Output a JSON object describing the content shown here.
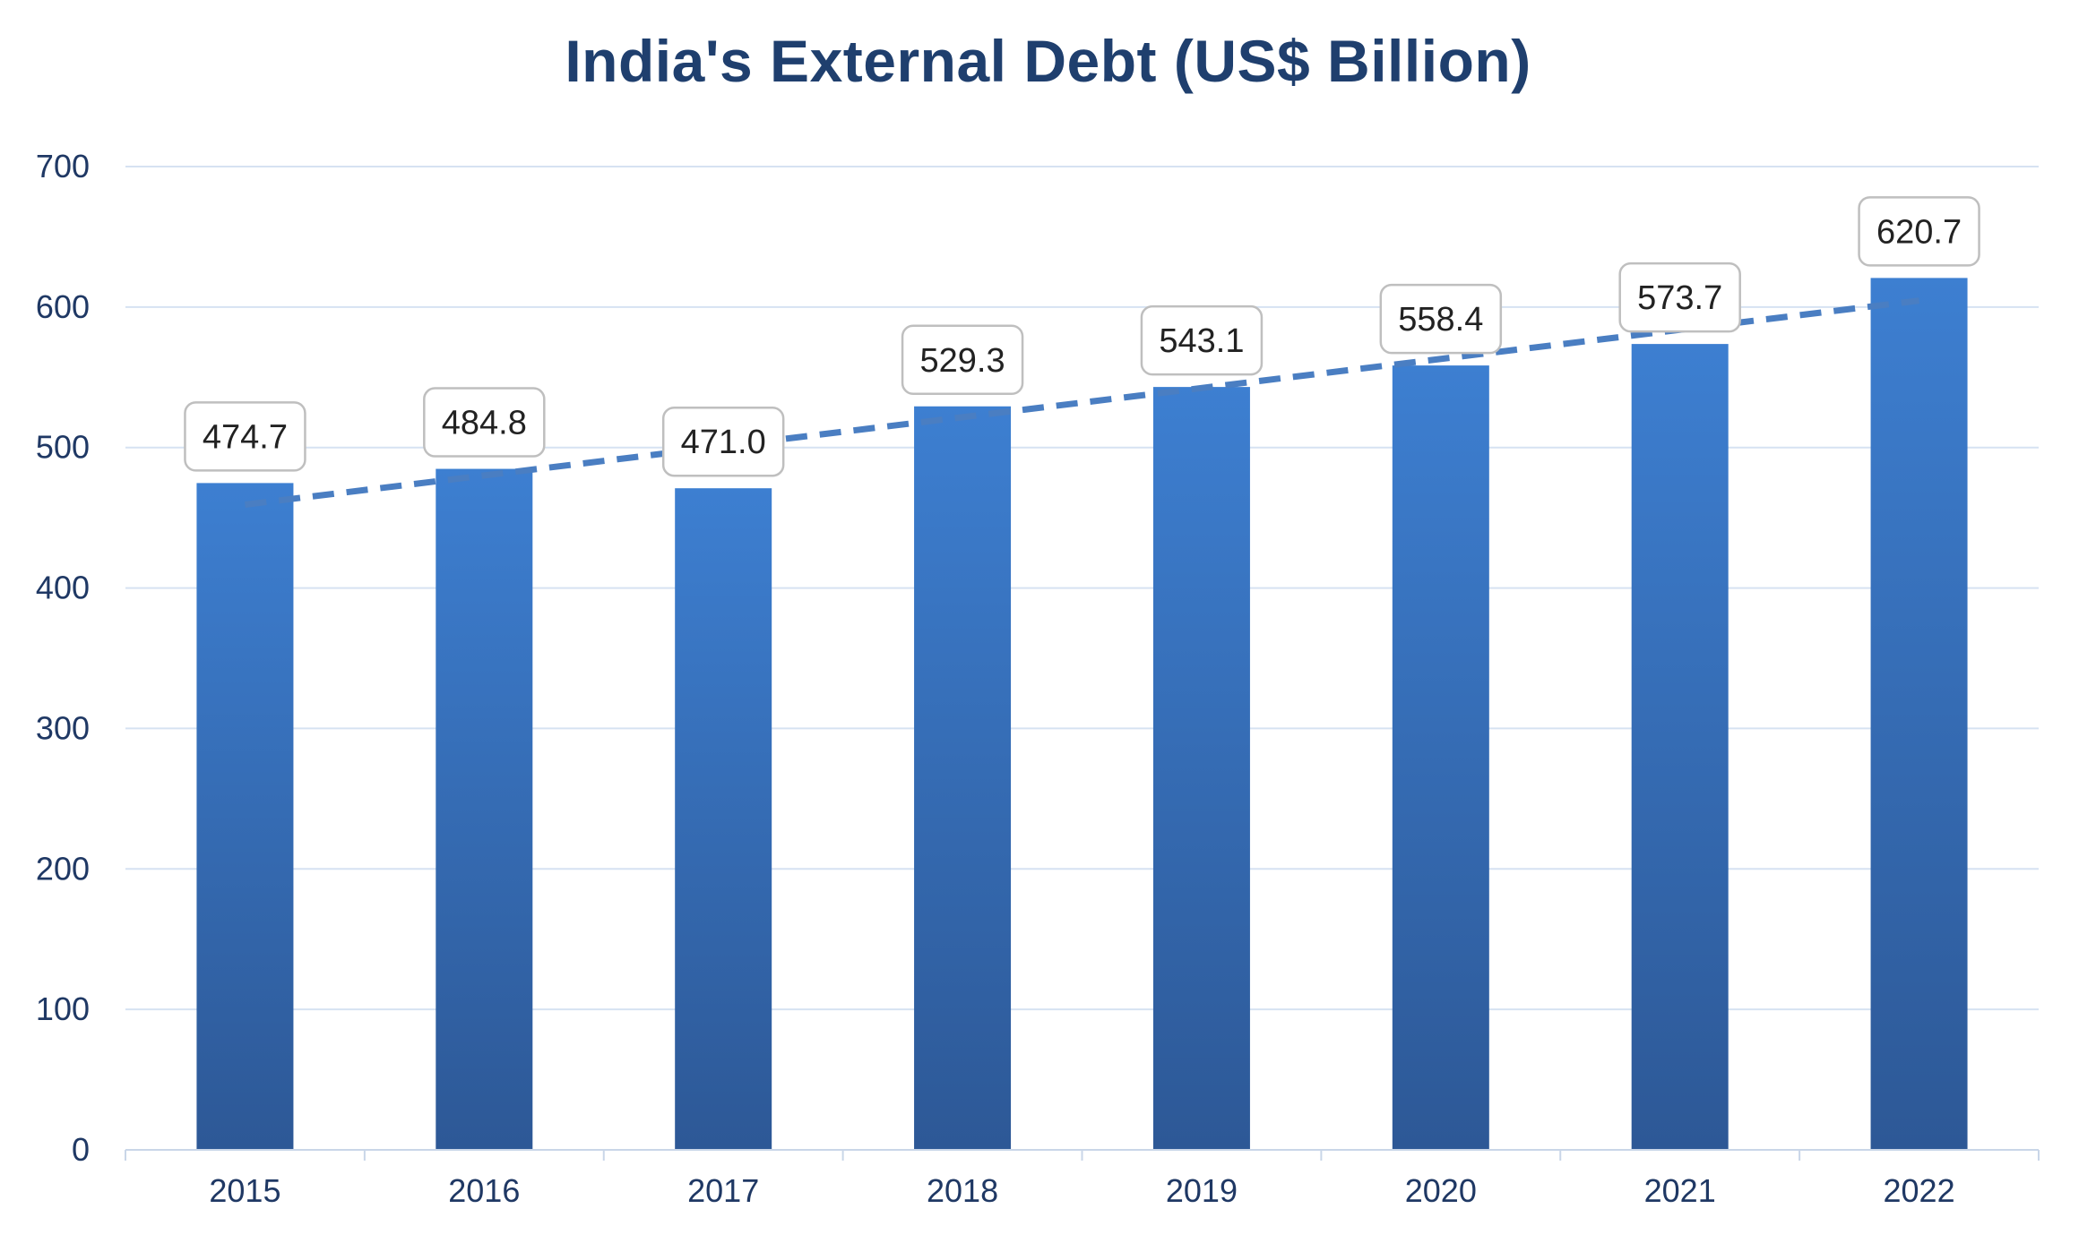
{
  "chart_data": {
    "type": "bar",
    "title": "India's External Debt (US$ Billion)",
    "xlabel": "",
    "ylabel": "",
    "categories": [
      "2015",
      "2016",
      "2017",
      "2018",
      "2019",
      "2020",
      "2021",
      "2022"
    ],
    "values": [
      474.7,
      484.8,
      471.0,
      529.3,
      543.1,
      558.4,
      573.7,
      620.7
    ],
    "value_labels": [
      "474.7",
      "484.8",
      "471.0",
      "529.3",
      "543.1",
      "558.4",
      "573.7",
      "620.7"
    ],
    "ylim": [
      0,
      700
    ],
    "yticks": [
      "0",
      "100",
      "200",
      "300",
      "400",
      "500",
      "600",
      "700"
    ],
    "grid": true,
    "trendline": "linear, dashed",
    "colors": {
      "bar_top": "#3d7fd1",
      "bar_bottom": "#2d5896",
      "trendline": "#4a7ec2",
      "grid": "#d6e2f2",
      "title": "#1f3f6e",
      "axis_text": "#1f3864"
    }
  }
}
